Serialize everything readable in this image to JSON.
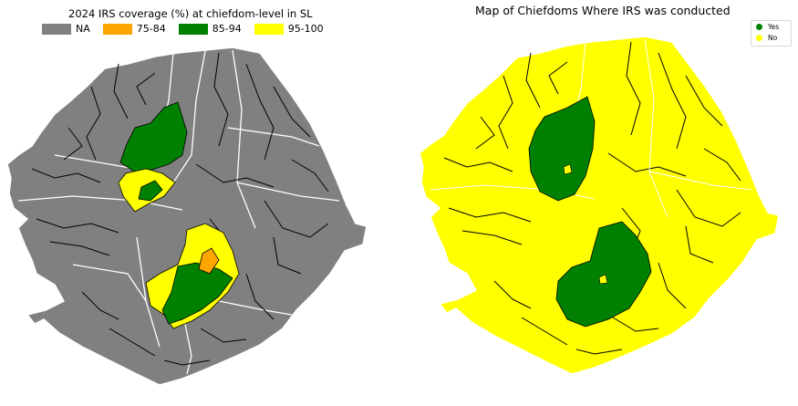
{
  "left_map": {
    "title": "2024 IRS coverage (%) at chiefdom-level in SL",
    "legend": [
      {
        "label": "NA",
        "color": "#808080"
      },
      {
        "label": "75-84",
        "color": "#ffa500"
      },
      {
        "label": "85-94",
        "color": "#008000"
      },
      {
        "label": "95-100",
        "color": "#ffff00"
      }
    ]
  },
  "right_map": {
    "title": "Map of Chiefdoms Where IRS was conducted",
    "legend": [
      {
        "label": "Yes",
        "color": "#008000"
      },
      {
        "label": "No",
        "color": "#ffff00"
      }
    ]
  }
}
